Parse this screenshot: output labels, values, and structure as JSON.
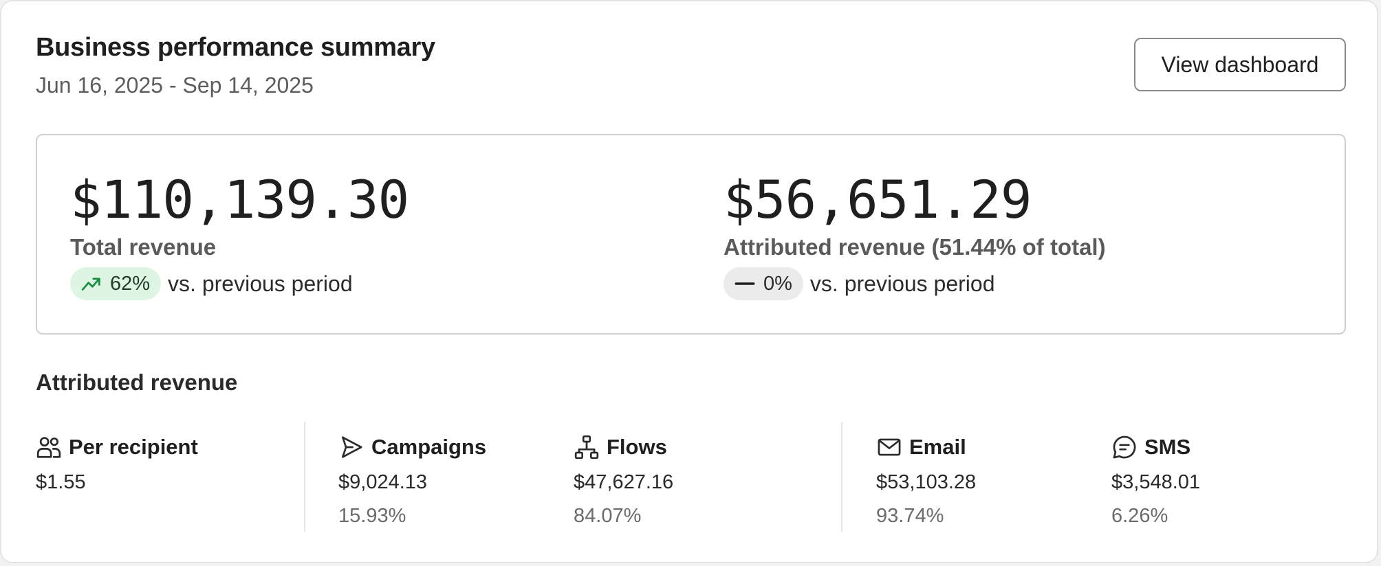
{
  "header": {
    "title": "Business performance summary",
    "date_range": "Jun 16, 2025 - Sep 14, 2025",
    "view_button": "View dashboard"
  },
  "summary": {
    "total": {
      "value": "$110,139.30",
      "label": "Total revenue",
      "change": "62%",
      "change_icon": "trend-up-icon",
      "compare_text": "vs. previous period"
    },
    "attributed": {
      "value": "$56,651.29",
      "label": "Attributed revenue (51.44% of total)",
      "change": "0%",
      "change_icon": "dash-icon",
      "compare_text": "vs. previous period"
    }
  },
  "attributed_section": {
    "title": "Attributed revenue",
    "stats": [
      {
        "label": "Per recipient",
        "icon": "people-icon",
        "amount": "$1.55",
        "percent": ""
      },
      {
        "label": "Campaigns",
        "icon": "send-icon",
        "amount": "$9,024.13",
        "percent": "15.93%"
      },
      {
        "label": "Flows",
        "icon": "flow-icon",
        "amount": "$47,627.16",
        "percent": "84.07%"
      },
      {
        "label": "Email",
        "icon": "mail-icon",
        "amount": "$53,103.28",
        "percent": "93.74%"
      },
      {
        "label": "SMS",
        "icon": "chat-icon",
        "amount": "$3,548.01",
        "percent": "6.26%"
      }
    ]
  },
  "colors": {
    "up_pill_bg": "#dff5e3",
    "up_icon": "#1f8f45",
    "flat_pill_bg": "#ebebeb"
  }
}
